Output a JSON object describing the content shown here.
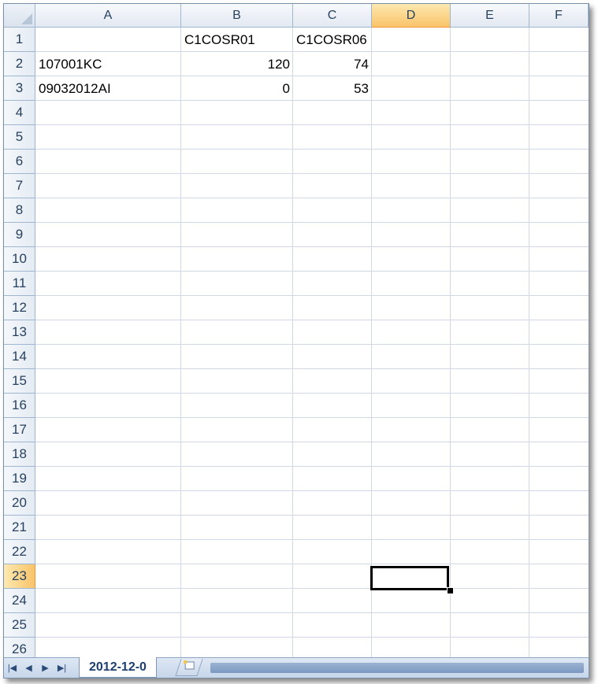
{
  "columns": [
    "A",
    "B",
    "C",
    "D",
    "E",
    "F"
  ],
  "selected_column": "D",
  "rows": [
    "1",
    "2",
    "3",
    "4",
    "5",
    "6",
    "7",
    "8",
    "9",
    "10",
    "11",
    "12",
    "13",
    "14",
    "15",
    "16",
    "17",
    "18",
    "19",
    "20",
    "21",
    "22",
    "23",
    "24",
    "25",
    "26"
  ],
  "selected_row": "23",
  "cells": {
    "B1": "C1COSR01",
    "C1": "C1COSR06",
    "A2": "107001KC",
    "B2": "120",
    "C2": "74",
    "A3": "09032012AI",
    "B3": "0",
    "C3": "53"
  },
  "active_cell": "D23",
  "sheet_tabs": [
    "2012-12-0"
  ],
  "icons": {
    "first_sheet": "first-sheet-icon",
    "prev_sheet": "prev-sheet-icon",
    "next_sheet": "next-sheet-icon",
    "last_sheet": "last-sheet-icon",
    "insert_sheet": "insert-sheet-icon"
  }
}
